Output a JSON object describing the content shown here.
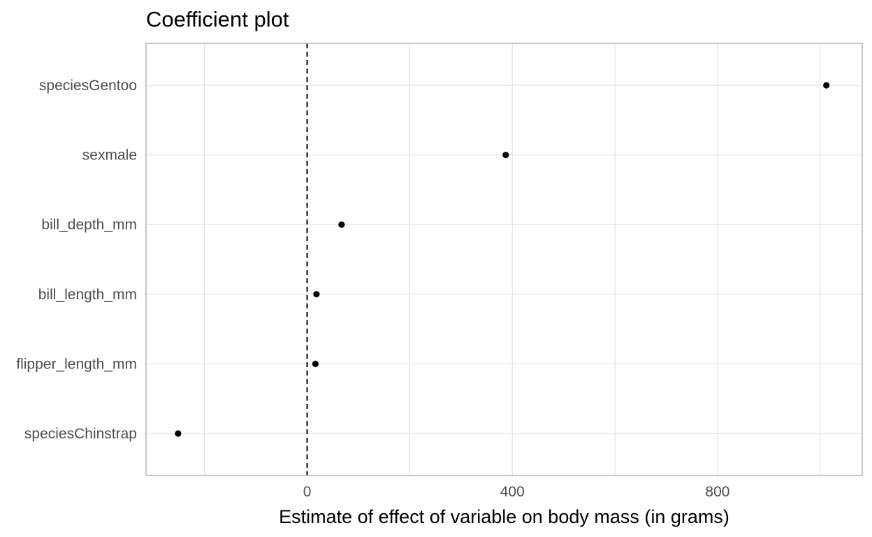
{
  "chart_data": {
    "type": "scatter",
    "title": "Coefficient plot",
    "xlabel": "Estimate of effect of variable on body mass (in grams)",
    "ylabel": "",
    "categories": [
      "speciesChinstrap",
      "flipper_length_mm",
      "bill_length_mm",
      "bill_depth_mm",
      "sexmale",
      "speciesGentoo"
    ],
    "values": [
      -251.5,
      16.2,
      18.2,
      67.2,
      387.2,
      1012.1
    ],
    "xlim": [
      -314,
      1082
    ],
    "x_ticks": [
      0,
      400,
      800
    ],
    "x_tick_labels": [
      "0",
      "400",
      "800"
    ],
    "x_minor_gridlines": [
      -200,
      200,
      600,
      1000
    ],
    "reference_line": {
      "x": 0,
      "style": "dashed"
    },
    "grid": true,
    "legend": "none",
    "colors": {
      "point": "#000000",
      "grid": "#dedede",
      "panel_border": "#b3b3b3",
      "reference_line": "#000000"
    }
  }
}
